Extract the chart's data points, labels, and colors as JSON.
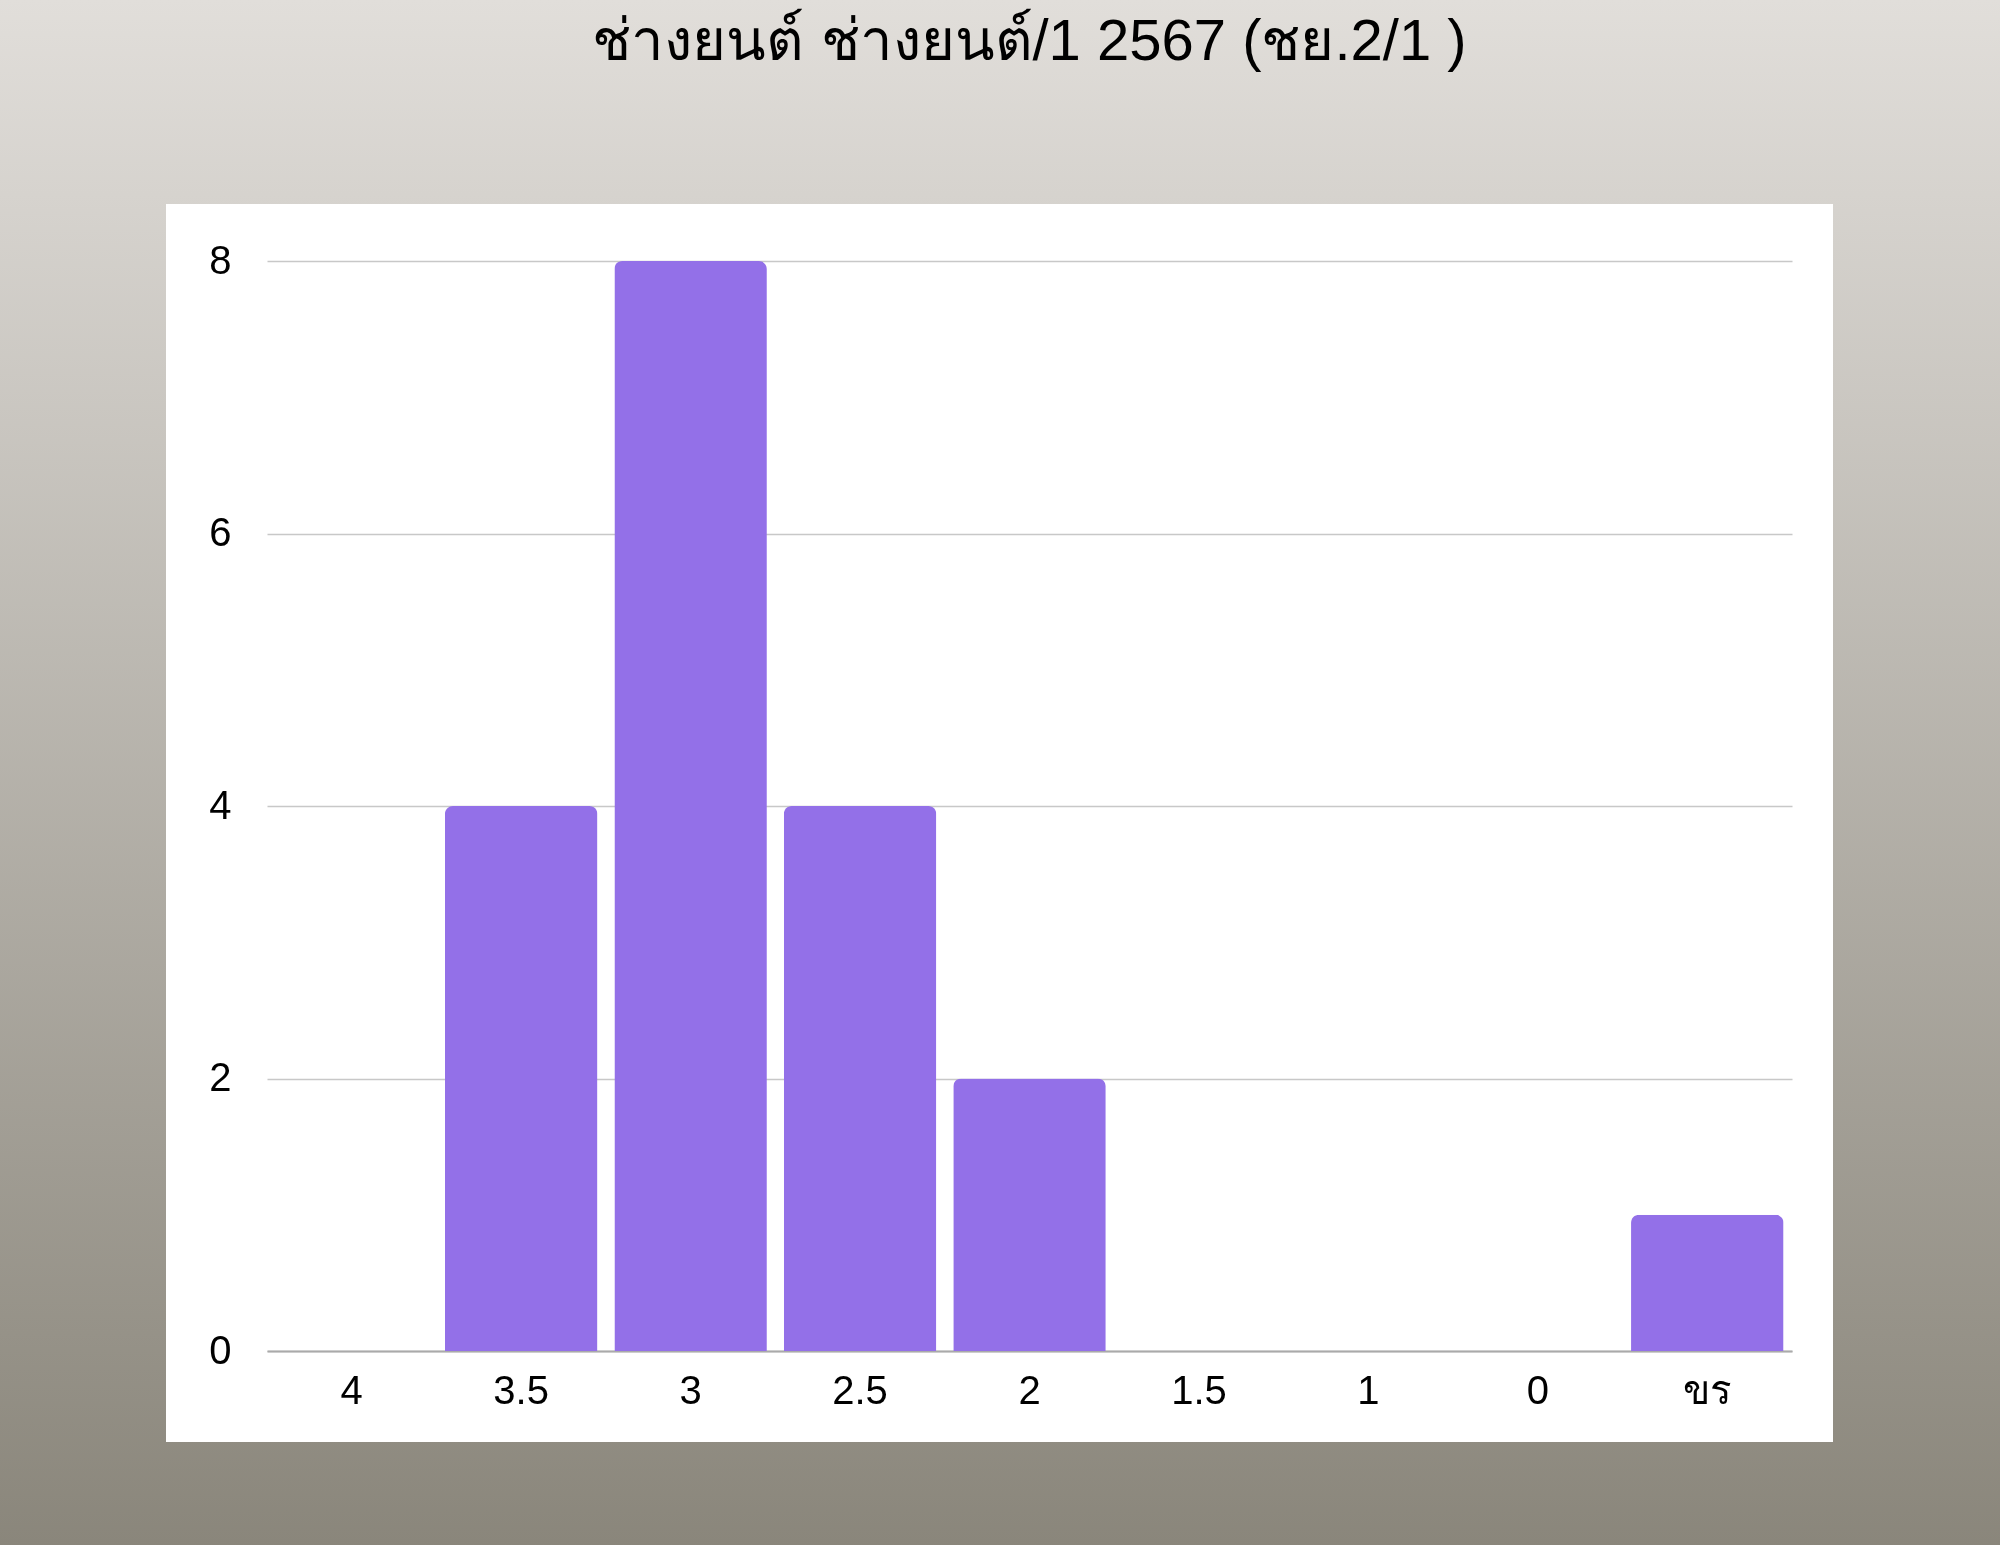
{
  "chart_data": {
    "type": "bar",
    "title": "ช่างยนต์ ช่างยนต์/1 2567 (ชย.2/1 )",
    "categories": [
      "4",
      "3.5",
      "3",
      "2.5",
      "2",
      "1.5",
      "1",
      "0",
      "ขร"
    ],
    "values": [
      0,
      4,
      8,
      4,
      2,
      0,
      0,
      0,
      1
    ],
    "color": "#9370e8",
    "ylim": [
      0,
      8
    ],
    "yticks": [
      0,
      2,
      4,
      6,
      8
    ],
    "grid": "y"
  }
}
